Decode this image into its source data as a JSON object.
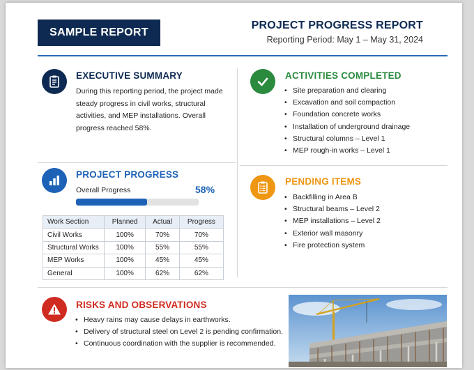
{
  "header": {
    "badge": "SAMPLE REPORT",
    "title": "PROJECT PROGRESS REPORT",
    "period": "Reporting Period: May 1 – May 31, 2024"
  },
  "colors": {
    "navy": "#0e2a52",
    "blue": "#1d62b6",
    "green": "#2a8a3e",
    "orange": "#ef9613",
    "red": "#d02b20"
  },
  "executive_summary": {
    "icon": "clipboard-icon",
    "title": "EXECUTIVE SUMMARY",
    "text": "During this reporting period, the project made steady progress in civil works, structural activities, and MEP installations. Overall progress reached 58%."
  },
  "activities_completed": {
    "icon": "checkmark-icon",
    "title": "ACTIVITIES COMPLETED",
    "items": [
      "Site preparation and clearing",
      "Excavation and soil compaction",
      "Foundation concrete works",
      "Installation of underground drainage",
      "Structural columns – Level 1",
      "MEP rough-in works – Level 1"
    ]
  },
  "project_progress": {
    "icon": "bar-chart-icon",
    "title": "PROJECT PROGRESS",
    "overall_label": "Overall Progress",
    "overall_value": "58%",
    "overall_fraction": 0.58,
    "table": {
      "headers": [
        "Work Section",
        "Planned",
        "Actual",
        "Progress"
      ],
      "rows": [
        [
          "Civil Works",
          "100%",
          "70%",
          "70%"
        ],
        [
          "Structural Works",
          "100%",
          "55%",
          "55%"
        ],
        [
          "MEP Works",
          "100%",
          "45%",
          "45%"
        ],
        [
          "General",
          "100%",
          "62%",
          "62%"
        ]
      ]
    }
  },
  "pending_items": {
    "icon": "pending-clipboard-icon",
    "title": "PENDING ITEMS",
    "items": [
      "Backfilling in Area B",
      "Structural beams – Level 2",
      "MEP installations – Level 2",
      "Exterior wall masonry",
      "Fire protection system"
    ]
  },
  "risks": {
    "icon": "warning-icon",
    "title": "RISKS AND OBSERVATIONS",
    "items": [
      "Heavy rains may cause delays in earthworks.",
      "Delivery of structural steel on Level 2 is pending confirmation.",
      "Continuous coordination with the supplier is recommended."
    ]
  },
  "photo": {
    "subject": "construction-site-crane-photo"
  }
}
